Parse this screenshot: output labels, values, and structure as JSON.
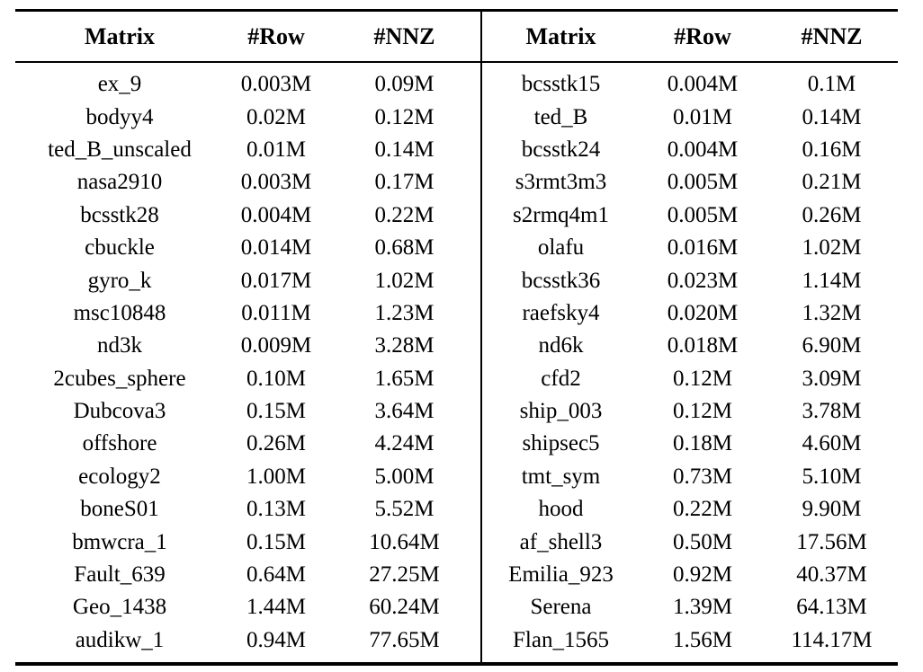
{
  "table": {
    "headers": [
      "Matrix",
      "#Row",
      "#NNZ",
      "Matrix",
      "#Row",
      "#NNZ"
    ],
    "rows": [
      [
        "ex_9",
        "0.003M",
        "0.09M",
        "bcsstk15",
        "0.004M",
        "0.1M"
      ],
      [
        "bodyy4",
        "0.02M",
        "0.12M",
        "ted_B",
        "0.01M",
        "0.14M"
      ],
      [
        "ted_B_unscaled",
        "0.01M",
        "0.14M",
        "bcsstk24",
        "0.004M",
        "0.16M"
      ],
      [
        "nasa2910",
        "0.003M",
        "0.17M",
        "s3rmt3m3",
        "0.005M",
        "0.21M"
      ],
      [
        "bcsstk28",
        "0.004M",
        "0.22M",
        "s2rmq4m1",
        "0.005M",
        "0.26M"
      ],
      [
        "cbuckle",
        "0.014M",
        "0.68M",
        "olafu",
        "0.016M",
        "1.02M"
      ],
      [
        "gyro_k",
        "0.017M",
        "1.02M",
        "bcsstk36",
        "0.023M",
        "1.14M"
      ],
      [
        "msc10848",
        "0.011M",
        "1.23M",
        "raefsky4",
        "0.020M",
        "1.32M"
      ],
      [
        "nd3k",
        "0.009M",
        "3.28M",
        "nd6k",
        "0.018M",
        "6.90M"
      ],
      [
        "2cubes_sphere",
        "0.10M",
        "1.65M",
        "cfd2",
        "0.12M",
        "3.09M"
      ],
      [
        "Dubcova3",
        "0.15M",
        "3.64M",
        "ship_003",
        "0.12M",
        "3.78M"
      ],
      [
        "offshore",
        "0.26M",
        "4.24M",
        "shipsec5",
        "0.18M",
        "4.60M"
      ],
      [
        "ecology2",
        "1.00M",
        "5.00M",
        "tmt_sym",
        "0.73M",
        "5.10M"
      ],
      [
        "boneS01",
        "0.13M",
        "5.52M",
        "hood",
        "0.22M",
        "9.90M"
      ],
      [
        "bmwcra_1",
        "0.15M",
        "10.64M",
        "af_shell3",
        "0.50M",
        "17.56M"
      ],
      [
        "Fault_639",
        "0.64M",
        "27.25M",
        "Emilia_923",
        "0.92M",
        "40.37M"
      ],
      [
        "Geo_1438",
        "1.44M",
        "60.24M",
        "Serena",
        "1.39M",
        "64.13M"
      ],
      [
        "audikw_1",
        "0.94M",
        "77.65M",
        "Flan_1565",
        "1.56M",
        "114.17M"
      ]
    ]
  },
  "colors": {
    "text": "#000000",
    "rule": "#000000",
    "background": "#ffffff"
  }
}
